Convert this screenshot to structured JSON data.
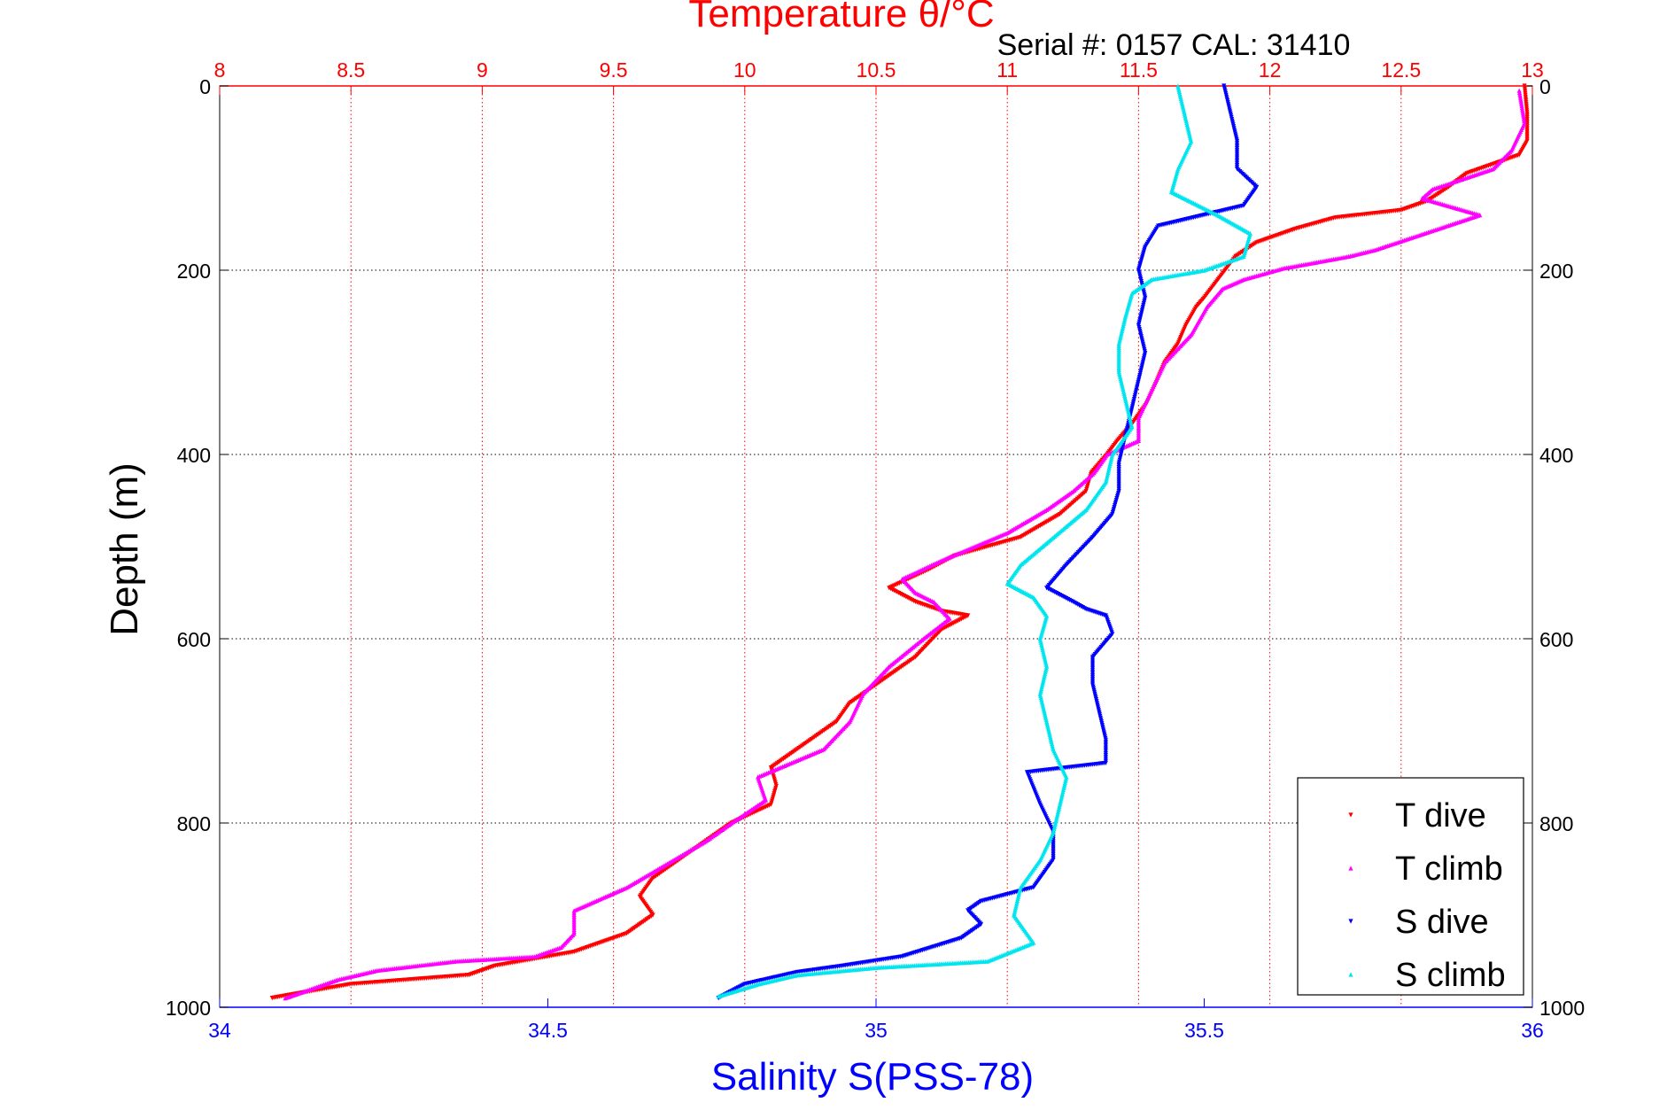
{
  "chart_data": {
    "type": "scatter",
    "title": "Temperature θ/°C",
    "subtitle": "Serial #: 0157  CAL: 31410",
    "ylabel": "Depth (m)",
    "xlabel": "Salinity S(PSS-78)",
    "top_axis": {
      "label": "Temperature θ/°C",
      "lim": [
        8,
        13
      ],
      "ticks": [
        "8",
        "8.5",
        "9",
        "9.5",
        "10",
        "10.5",
        "11",
        "11.5",
        "12",
        "12.5",
        "13"
      ],
      "tick_values": [
        8,
        8.5,
        9,
        9.5,
        10,
        10.5,
        11,
        11.5,
        12,
        12.5,
        13
      ],
      "color": "#ff0000"
    },
    "bottom_axis": {
      "label": "Salinity S(PSS-78)",
      "lim": [
        34,
        36
      ],
      "ticks": [
        "34",
        "34.5",
        "35",
        "35.5",
        "36"
      ],
      "tick_values": [
        34,
        34.5,
        35,
        35.5,
        36
      ],
      "color": "#0000ff"
    },
    "y_axis": {
      "lim": [
        0,
        1000
      ],
      "reversed": true,
      "ticks": [
        "0",
        "200",
        "400",
        "600",
        "800",
        "1000"
      ],
      "tick_values": [
        0,
        200,
        400,
        600,
        800,
        1000
      ]
    },
    "grid": true,
    "legend_position": "bottom-right",
    "series": [
      {
        "name": "T dive",
        "axis": "temperature",
        "color": "#ff0000",
        "marker": "triangle-down",
        "points": [
          [
            12.97,
            0
          ],
          [
            12.98,
            30
          ],
          [
            12.98,
            60
          ],
          [
            12.95,
            75
          ],
          [
            12.75,
            95
          ],
          [
            12.68,
            110
          ],
          [
            12.6,
            125
          ],
          [
            12.5,
            135
          ],
          [
            12.25,
            143
          ],
          [
            12.1,
            155
          ],
          [
            11.95,
            170
          ],
          [
            11.87,
            185
          ],
          [
            11.83,
            200
          ],
          [
            11.79,
            215
          ],
          [
            11.75,
            230
          ],
          [
            11.72,
            240
          ],
          [
            11.68,
            260
          ],
          [
            11.65,
            280
          ],
          [
            11.6,
            300
          ],
          [
            11.57,
            320
          ],
          [
            11.53,
            345
          ],
          [
            11.48,
            365
          ],
          [
            11.42,
            385
          ],
          [
            11.38,
            400
          ],
          [
            11.32,
            420
          ],
          [
            11.3,
            440
          ],
          [
            11.2,
            465
          ],
          [
            11.05,
            490
          ],
          [
            10.8,
            510
          ],
          [
            10.7,
            525
          ],
          [
            10.55,
            545
          ],
          [
            10.65,
            560
          ],
          [
            10.75,
            570
          ],
          [
            10.85,
            575
          ],
          [
            10.75,
            590
          ],
          [
            10.65,
            620
          ],
          [
            10.5,
            650
          ],
          [
            10.4,
            670
          ],
          [
            10.35,
            690
          ],
          [
            10.2,
            720
          ],
          [
            10.1,
            740
          ],
          [
            10.12,
            760
          ],
          [
            10.1,
            780
          ],
          [
            9.95,
            800
          ],
          [
            9.8,
            830
          ],
          [
            9.65,
            860
          ],
          [
            9.6,
            880
          ],
          [
            9.65,
            900
          ],
          [
            9.55,
            920
          ],
          [
            9.35,
            940
          ],
          [
            9.05,
            955
          ],
          [
            8.95,
            965
          ],
          [
            8.5,
            975
          ],
          [
            8.3,
            985
          ],
          [
            8.2,
            990
          ]
        ]
      },
      {
        "name": "T climb",
        "axis": "temperature",
        "color": "#ff00ff",
        "marker": "triangle-up",
        "points": [
          [
            12.95,
            5
          ],
          [
            12.97,
            40
          ],
          [
            12.92,
            70
          ],
          [
            12.85,
            90
          ],
          [
            12.62,
            112
          ],
          [
            12.58,
            122
          ],
          [
            12.8,
            140
          ],
          [
            12.4,
            178
          ],
          [
            12.3,
            185
          ],
          [
            12.05,
            198
          ],
          [
            11.9,
            210
          ],
          [
            11.82,
            220
          ],
          [
            11.76,
            240
          ],
          [
            11.7,
            270
          ],
          [
            11.6,
            300
          ],
          [
            11.55,
            330
          ],
          [
            11.5,
            360
          ],
          [
            11.5,
            385
          ],
          [
            11.38,
            400
          ],
          [
            11.33,
            420
          ],
          [
            11.25,
            440
          ],
          [
            11.15,
            460
          ],
          [
            11.0,
            485
          ],
          [
            10.75,
            515
          ],
          [
            10.6,
            535
          ],
          [
            10.65,
            550
          ],
          [
            10.72,
            560
          ],
          [
            10.78,
            578
          ],
          [
            10.68,
            600
          ],
          [
            10.55,
            630
          ],
          [
            10.45,
            660
          ],
          [
            10.4,
            690
          ],
          [
            10.3,
            720
          ],
          [
            10.05,
            750
          ],
          [
            10.08,
            775
          ],
          [
            9.95,
            800
          ],
          [
            9.85,
            820
          ],
          [
            9.7,
            845
          ],
          [
            9.55,
            870
          ],
          [
            9.35,
            895
          ],
          [
            9.35,
            920
          ],
          [
            9.3,
            935
          ],
          [
            9.2,
            945
          ],
          [
            8.9,
            950
          ],
          [
            8.6,
            960
          ],
          [
            8.45,
            970
          ],
          [
            8.35,
            980
          ],
          [
            8.25,
            990
          ]
        ]
      },
      {
        "name": "S dive",
        "axis": "salinity",
        "color": "#0000ff",
        "marker": "triangle-down",
        "points": [
          [
            35.53,
            0
          ],
          [
            35.54,
            30
          ],
          [
            35.55,
            60
          ],
          [
            35.55,
            90
          ],
          [
            35.58,
            110
          ],
          [
            35.56,
            130
          ],
          [
            35.43,
            152
          ],
          [
            35.41,
            175
          ],
          [
            35.4,
            200
          ],
          [
            35.41,
            230
          ],
          [
            35.4,
            260
          ],
          [
            35.41,
            290
          ],
          [
            35.4,
            320
          ],
          [
            35.39,
            350
          ],
          [
            35.38,
            380
          ],
          [
            35.37,
            410
          ],
          [
            35.37,
            440
          ],
          [
            35.36,
            465
          ],
          [
            35.33,
            490
          ],
          [
            35.29,
            520
          ],
          [
            35.26,
            545
          ],
          [
            35.3,
            560
          ],
          [
            35.32,
            568
          ],
          [
            35.35,
            575
          ],
          [
            35.36,
            595
          ],
          [
            35.33,
            620
          ],
          [
            35.33,
            650
          ],
          [
            35.34,
            680
          ],
          [
            35.35,
            710
          ],
          [
            35.35,
            735
          ],
          [
            35.23,
            745
          ],
          [
            35.25,
            780
          ],
          [
            35.27,
            810
          ],
          [
            35.27,
            840
          ],
          [
            35.24,
            870
          ],
          [
            35.16,
            885
          ],
          [
            35.14,
            895
          ],
          [
            35.16,
            910
          ],
          [
            35.13,
            925
          ],
          [
            35.04,
            945
          ],
          [
            34.95,
            955
          ],
          [
            34.88,
            962
          ],
          [
            34.8,
            975
          ],
          [
            34.76,
            990
          ]
        ]
      },
      {
        "name": "S climb",
        "axis": "salinity",
        "color": "#00e5ee",
        "marker": "triangle-up",
        "points": [
          [
            35.46,
            0
          ],
          [
            35.47,
            30
          ],
          [
            35.48,
            60
          ],
          [
            35.46,
            90
          ],
          [
            35.45,
            115
          ],
          [
            35.52,
            140
          ],
          [
            35.57,
            160
          ],
          [
            35.56,
            185
          ],
          [
            35.5,
            200
          ],
          [
            35.42,
            210
          ],
          [
            35.39,
            225
          ],
          [
            35.38,
            250
          ],
          [
            35.37,
            280
          ],
          [
            35.37,
            310
          ],
          [
            35.38,
            340
          ],
          [
            35.39,
            370
          ],
          [
            35.36,
            400
          ],
          [
            35.35,
            430
          ],
          [
            35.32,
            460
          ],
          [
            35.27,
            490
          ],
          [
            35.22,
            520
          ],
          [
            35.2,
            540
          ],
          [
            35.24,
            555
          ],
          [
            35.26,
            575
          ],
          [
            35.25,
            600
          ],
          [
            35.26,
            630
          ],
          [
            35.25,
            660
          ],
          [
            35.26,
            690
          ],
          [
            35.27,
            720
          ],
          [
            35.29,
            750
          ],
          [
            35.28,
            780
          ],
          [
            35.27,
            810
          ],
          [
            35.25,
            840
          ],
          [
            35.22,
            870
          ],
          [
            35.21,
            900
          ],
          [
            35.24,
            930
          ],
          [
            35.17,
            950
          ],
          [
            35.0,
            957
          ],
          [
            34.88,
            965
          ],
          [
            34.82,
            975
          ],
          [
            34.76,
            988
          ]
        ]
      }
    ]
  }
}
